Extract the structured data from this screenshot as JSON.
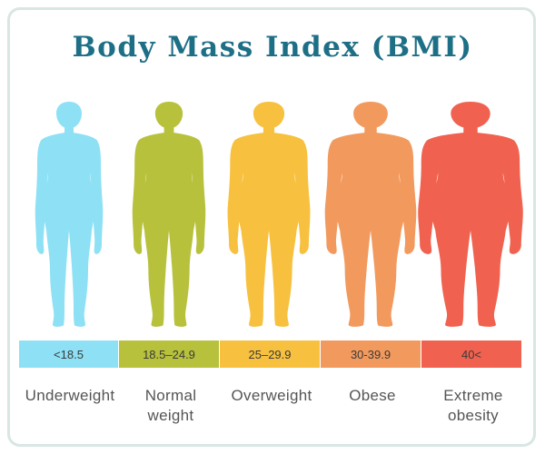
{
  "title": "Body Mass Index (BMI)",
  "categories": [
    {
      "range": "<18.5",
      "label_lines": [
        "Underweight"
      ],
      "color": "#8ee1f5",
      "body_width": 1.0
    },
    {
      "range": "18.5–24.9",
      "label_lines": [
        "Normal",
        "weight"
      ],
      "color": "#b7c13c",
      "body_width": 1.08
    },
    {
      "range": "25–29.9",
      "label_lines": [
        "Overweight"
      ],
      "color": "#f7c13f",
      "body_width": 1.22
    },
    {
      "range": "30-39.9",
      "label_lines": [
        "Obese"
      ],
      "color": "#f29a5e",
      "body_width": 1.35
    },
    {
      "range": "40<",
      "label_lines": [
        "Extreme",
        "obesity"
      ],
      "color": "#f0624f",
      "body_width": 1.55
    }
  ]
}
